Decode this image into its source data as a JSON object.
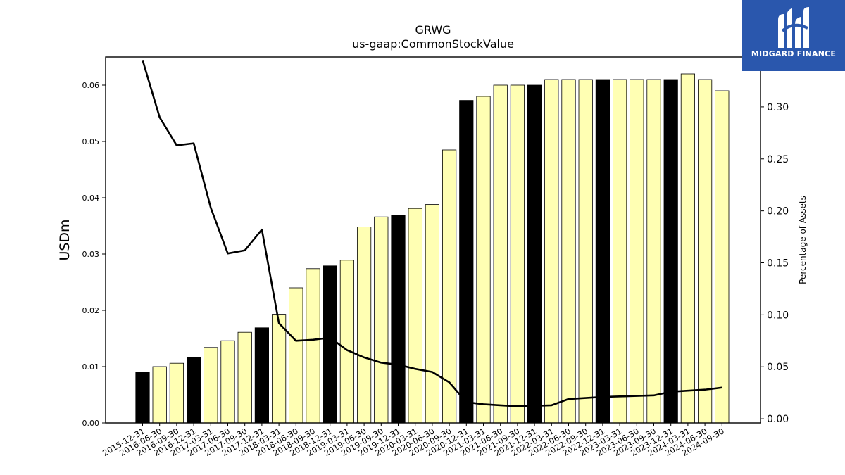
{
  "chart_data": {
    "type": "bar+line",
    "title": "GRWG",
    "subtitle": "us-gaap:CommonStockValue",
    "ylabel": "USDm",
    "y2label": "Percentage of Assets",
    "ylim": [
      0,
      0.065
    ],
    "y2lim": [
      -0.004,
      0.348
    ],
    "yticks": [
      "0.00",
      "0.01",
      "0.02",
      "0.03",
      "0.04",
      "0.05",
      "0.06"
    ],
    "y2ticks": [
      "0.00",
      "0.05",
      "0.10",
      "0.15",
      "0.20",
      "0.25",
      "0.30"
    ],
    "categories": [
      "2015-12-31",
      "2016-06-30",
      "2016-09-30",
      "2016-12-31",
      "2017-03-31",
      "2017-06-30",
      "2017-09-30",
      "2017-12-31",
      "2018-03-31",
      "2018-06-30",
      "2018-09-30",
      "2018-12-31",
      "2019-03-31",
      "2019-06-30",
      "2019-09-30",
      "2019-12-31",
      "2020-03-31",
      "2020-06-30",
      "2020-09-30",
      "2020-12-31",
      "2021-03-31",
      "2021-06-30",
      "2021-09-30",
      "2021-12-31",
      "2022-03-31",
      "2022-06-30",
      "2022-09-30",
      "2022-12-31",
      "2023-03-31",
      "2023-06-30",
      "2023-09-30",
      "2023-12-31",
      "2024-03-31",
      "2024-06-30",
      "2024-09-30"
    ],
    "series": [
      {
        "kind": "bar",
        "values": [
          0.009,
          0.01,
          0.0106,
          0.0117,
          0.0134,
          0.0146,
          0.0161,
          0.0169,
          0.0193,
          0.024,
          0.0274,
          0.0279,
          0.0289,
          0.0348,
          0.0366,
          0.0369,
          0.0381,
          0.0388,
          0.0485,
          0.0573,
          0.058,
          0.06,
          0.06,
          0.06,
          0.061,
          0.061,
          0.061,
          0.061,
          0.061,
          0.061,
          0.061,
          0.061,
          0.062,
          0.061,
          0.059
        ],
        "highlight": [
          true,
          false,
          false,
          true,
          false,
          false,
          false,
          true,
          false,
          false,
          false,
          true,
          false,
          false,
          false,
          true,
          false,
          false,
          false,
          true,
          false,
          false,
          false,
          true,
          false,
          false,
          false,
          true,
          false,
          false,
          false,
          true,
          false,
          false,
          false
        ]
      },
      {
        "kind": "line",
        "axis": "right",
        "values": [
          0.345,
          0.29,
          0.263,
          0.265,
          0.203,
          0.159,
          0.162,
          0.182,
          0.092,
          0.075,
          0.076,
          0.078,
          0.066,
          0.059,
          0.054,
          0.052,
          0.048,
          0.045,
          0.035,
          0.016,
          0.014,
          0.013,
          0.012,
          0.0125,
          0.013,
          0.019,
          0.02,
          0.021,
          0.0215,
          0.022,
          0.0225,
          0.026,
          0.027,
          0.028,
          0.03
        ]
      }
    ],
    "colors": {
      "highlight_bar": "#000000",
      "bar": "#ffffb3",
      "bar_edge": "#000000",
      "line": "#000000"
    },
    "grid": false,
    "legend": "none"
  },
  "logo": {
    "text": "MIDGARD FINANCE",
    "background": "#2a57ad",
    "icon": "midgard-logo-icon"
  }
}
